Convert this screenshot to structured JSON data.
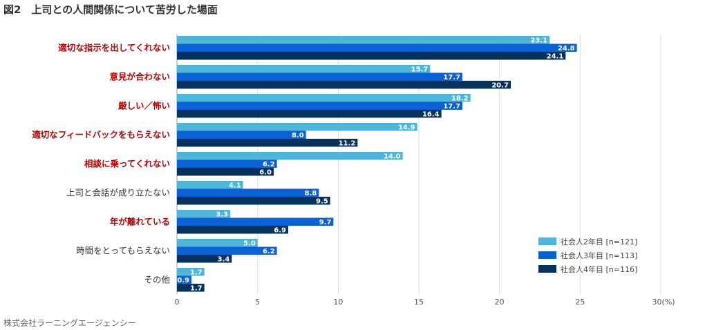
{
  "chart_data": {
    "type": "bar",
    "orientation": "horizontal",
    "title": "図2　上司との人間関係について苦労した場面",
    "source": "株式会社ラーニングエージェンシー",
    "unit_label": "(%)",
    "categories": [
      "適切な指示を出してくれない",
      "意見が合わない",
      "厳しい／怖い",
      "適切なフィードバックをもらえない",
      "相談に乗ってくれない",
      "上司と会話が成り立たない",
      "年が離れている",
      "時間をとってもらえない",
      "その他"
    ],
    "highlighted": [
      true,
      true,
      true,
      true,
      true,
      false,
      true,
      false,
      false
    ],
    "series": [
      {
        "name": "社会人2年目 [n=121]",
        "color": "#4db6d9",
        "values": [
          23.1,
          15.7,
          18.2,
          14.9,
          14.0,
          4.1,
          3.3,
          5.0,
          1.7
        ]
      },
      {
        "name": "社会人3年目 [n=113]",
        "color": "#0a62d6",
        "values": [
          24.8,
          17.7,
          17.7,
          8.0,
          6.2,
          8.8,
          9.7,
          6.2,
          0.9
        ]
      },
      {
        "name": "社会人4年目 [n=116]",
        "color": "#05335e",
        "values": [
          24.1,
          20.7,
          16.4,
          11.2,
          6.0,
          9.5,
          6.9,
          3.4,
          1.7
        ]
      }
    ],
    "xlim": [
      0,
      30
    ],
    "xticks": [
      0,
      5,
      10,
      15,
      20,
      25,
      30
    ],
    "grid": true,
    "legend": "bottom-right",
    "colors": {
      "highlight_label": "#c00000",
      "normal_label": "#333333",
      "grid": "#dddddd",
      "axis": "#999999"
    }
  }
}
